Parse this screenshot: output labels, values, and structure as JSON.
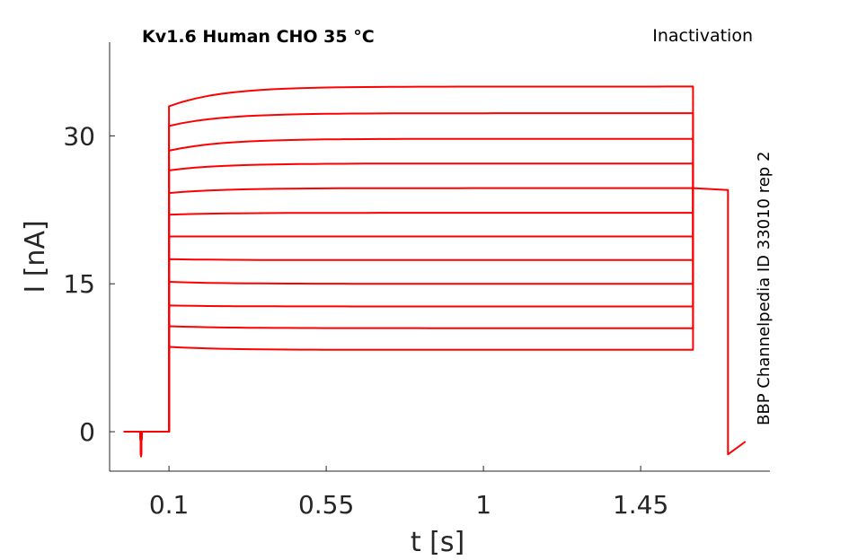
{
  "chart_data": {
    "type": "line",
    "title": "Kv1.6  Human  CHO  35 °C",
    "protocol": "Inactivation",
    "side_label": "BBP Channelpedia ID 33010 rep 2",
    "xlabel": "t [s]",
    "ylabel": "I [nA]",
    "xticks": [
      0.1,
      0.55,
      1,
      1.45
    ],
    "xtick_labels": [
      "0.1",
      "0.55",
      "1",
      "1.45"
    ],
    "yticks": [
      0,
      15,
      30
    ],
    "ytick_labels": [
      "0",
      "15",
      "30"
    ],
    "xlim": [
      -0.07,
      1.82
    ],
    "ylim": [
      -4,
      39.5
    ],
    "color": "#ff0000",
    "pulse": {
      "t_start": 0.1,
      "t_end": 1.6
    },
    "sweeps": [
      {
        "peak": 33.0,
        "steady": 35.0
      },
      {
        "peak": 31.0,
        "steady": 32.3
      },
      {
        "peak": 28.5,
        "steady": 29.7
      },
      {
        "peak": 26.5,
        "steady": 27.2
      },
      {
        "peak": 24.2,
        "steady": 24.7
      },
      {
        "peak": 22.0,
        "steady": 22.2
      },
      {
        "peak": 19.8,
        "steady": 19.8
      },
      {
        "peak": 17.5,
        "steady": 17.4
      },
      {
        "peak": 15.2,
        "steady": 15.0
      },
      {
        "peak": 12.8,
        "steady": 12.7
      },
      {
        "peak": 10.7,
        "steady": 10.5
      },
      {
        "peak": 8.6,
        "steady": 8.3
      }
    ],
    "holding": {
      "t": [
        -0.03,
        0.1
      ],
      "value": 0.0
    },
    "artifact": {
      "t": 0.02,
      "min": -2.5
    },
    "tail": {
      "t_start": 1.6,
      "t_end": 1.7,
      "value": 24.7,
      "end_value": 24.5
    },
    "post_tail": {
      "t_start": 1.7,
      "t_end": 1.75,
      "start": -2.3,
      "end": -1.0
    }
  }
}
